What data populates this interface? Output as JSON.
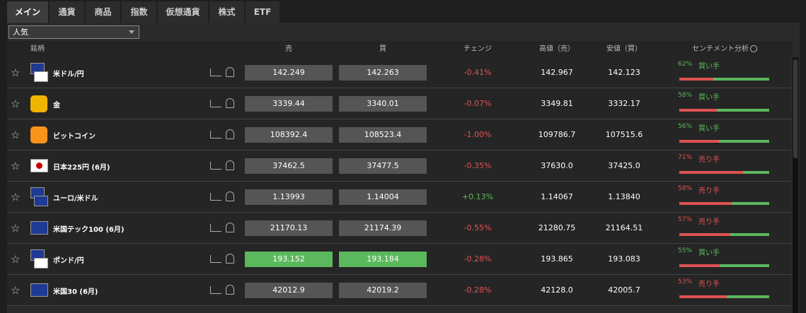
{
  "tabs": [
    "メイン",
    "通貨",
    "商品",
    "指数",
    "仮想通貨",
    "株式",
    "ETF"
  ],
  "active_tab": 0,
  "filter": "人気",
  "header": {
    "name": "銘柄",
    "sell": "売",
    "buy": "買",
    "change": "チェンジ",
    "high": "高値（売）",
    "low": "安値（買）",
    "sentiment": "センチメント分析"
  },
  "rows": [
    {
      "name": "米ドル/円",
      "sell": "142.249",
      "buy": "142.263",
      "change": "-0.41%",
      "high": "142.967",
      "low": "142.123",
      "sentiment": {
        "value": 62,
        "label": "62%",
        "side": "買い手",
        "color": "#5cb85c"
      }
    },
    {
      "name": "金",
      "sell": "3339.44",
      "buy": "3340.01",
      "change": "-0.07%",
      "high": "3349.81",
      "low": "3332.17",
      "sentiment": {
        "value": 58,
        "label": "58%",
        "side": "買い手",
        "color": "#5cb85c"
      }
    },
    {
      "name": "ビットコイン",
      "sell": "108392.4",
      "buy": "108523.4",
      "change": "-1.00%",
      "high": "109786.7",
      "low": "107515.6",
      "sentiment": {
        "value": 56,
        "label": "56%",
        "side": "買い手",
        "color": "#5cb85c"
      }
    },
    {
      "name": "日本225円 (6月)",
      "sell": "37462.5",
      "buy": "37477.5",
      "change": "-0.35%",
      "high": "37630.0",
      "low": "37425.0",
      "sentiment": {
        "value": 71,
        "label": "71%",
        "side": "売り手",
        "color": "#e05252"
      }
    },
    {
      "name": "ユーロ/米ドル",
      "sell": "1.13993",
      "buy": "1.14004",
      "change": "+0.13%",
      "high": "1.14067",
      "low": "1.13840",
      "sentiment": {
        "value": 58,
        "label": "58%",
        "side": "売り手",
        "color": "#e05252"
      }
    },
    {
      "name": "米国テック100 (6月)",
      "sell": "21170.13",
      "buy": "21174.39",
      "change": "-0.55%",
      "high": "21280.75",
      "low": "21164.51",
      "sentiment": {
        "value": 57,
        "label": "57%",
        "side": "売り手",
        "color": "#e05252"
      }
    },
    {
      "name": "ポンド/円",
      "sell": "193.152",
      "buy": "193.184",
      "change": "-0.28%",
      "high": "193.865",
      "low": "193.083",
      "highlight": true,
      "sentiment": {
        "value": 55,
        "label": "55%",
        "side": "買い手",
        "color": "#5cb85c"
      }
    },
    {
      "name": "米国30 (6月)",
      "sell": "42012.9",
      "buy": "42019.2",
      "change": "-0.28%",
      "high": "42128.0",
      "low": "42005.7",
      "sentiment": {
        "value": 53,
        "label": "53%",
        "side": "売り手",
        "color": "#e05252"
      }
    }
  ]
}
